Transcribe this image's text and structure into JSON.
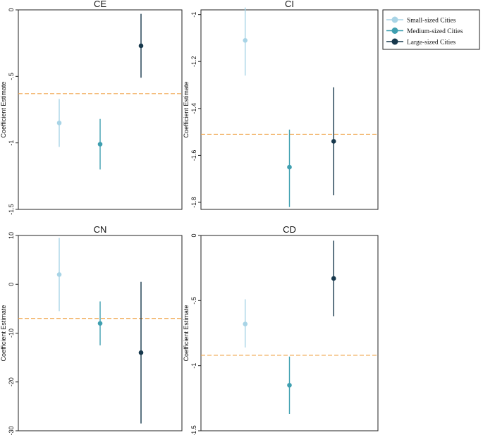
{
  "chart_data": {
    "type": "scatter",
    "subtype": "coefficient-plot-with-confidence-intervals",
    "legend": {
      "position": "top-right",
      "entries": [
        {
          "name": "Small-sized Cities",
          "color": "#a8d4e6"
        },
        {
          "name": "Medium-sized Cities",
          "color": "#3f9fb0"
        },
        {
          "name": "Large-sized Cities",
          "color": "#17384c"
        }
      ]
    },
    "reference_color": "#f0a44a",
    "grid": false,
    "panels": [
      {
        "title": "CE",
        "ylabel": "Coefficient Estimate",
        "ylim": [
          -1.5,
          0
        ],
        "yticks": [
          0,
          -0.5,
          -1,
          -1.5
        ],
        "ytick_labels": [
          "0",
          "-.5",
          "-1",
          "-1.5"
        ],
        "reference_line": -0.63,
        "series": [
          {
            "name": "Small-sized Cities",
            "estimate": -0.85,
            "ci": [
              -1.03,
              -0.67
            ]
          },
          {
            "name": "Medium-sized Cities",
            "estimate": -1.01,
            "ci": [
              -1.2,
              -0.82
            ]
          },
          {
            "name": "Large-sized Cities",
            "estimate": -0.27,
            "ci": [
              -0.51,
              -0.03
            ]
          }
        ]
      },
      {
        "title": "CI",
        "ylabel": "Coefficient Estimate",
        "ylim": [
          -1.83,
          -0.98
        ],
        "yticks": [
          -1,
          -1.2,
          -1.4,
          -1.6,
          -1.8
        ],
        "ytick_labels": [
          "-1",
          "-1.2",
          "-1.4",
          "-1.6",
          "-1.8"
        ],
        "reference_line": -1.51,
        "series": [
          {
            "name": "Small-sized Cities",
            "estimate": -1.11,
            "ci": [
              -1.26,
              -0.97
            ]
          },
          {
            "name": "Medium-sized Cities",
            "estimate": -1.65,
            "ci": [
              -1.82,
              -1.49
            ]
          },
          {
            "name": "Large-sized Cities",
            "estimate": -1.54,
            "ci": [
              -1.77,
              -1.31
            ]
          }
        ]
      },
      {
        "title": "CN",
        "ylabel": "Coefficient Estimate",
        "ylim": [
          -30,
          10
        ],
        "yticks": [
          10,
          0,
          -10,
          -20,
          -30
        ],
        "ytick_labels": [
          "10",
          "0",
          "-10",
          "-20",
          "-30"
        ],
        "reference_line": -7,
        "series": [
          {
            "name": "Small-sized Cities",
            "estimate": 2,
            "ci": [
              -5.5,
              9.5
            ]
          },
          {
            "name": "Medium-sized Cities",
            "estimate": -8,
            "ci": [
              -12.5,
              -3.5
            ]
          },
          {
            "name": "Large-sized Cities",
            "estimate": -14,
            "ci": [
              -28.5,
              0.5
            ]
          }
        ]
      },
      {
        "title": "CD",
        "ylabel": "Coefficient Estimate",
        "ylim": [
          -1.5,
          0
        ],
        "yticks": [
          0,
          -0.5,
          -1,
          -1.5
        ],
        "ytick_labels": [
          "0",
          "-.5",
          "-1",
          "-1.5"
        ],
        "reference_line": -0.92,
        "series": [
          {
            "name": "Small-sized Cities",
            "estimate": -0.68,
            "ci": [
              -0.86,
              -0.49
            ]
          },
          {
            "name": "Medium-sized Cities",
            "estimate": -1.15,
            "ci": [
              -1.37,
              -0.93
            ]
          },
          {
            "name": "Large-sized Cities",
            "estimate": -0.33,
            "ci": [
              -0.62,
              -0.04
            ]
          }
        ]
      }
    ]
  }
}
